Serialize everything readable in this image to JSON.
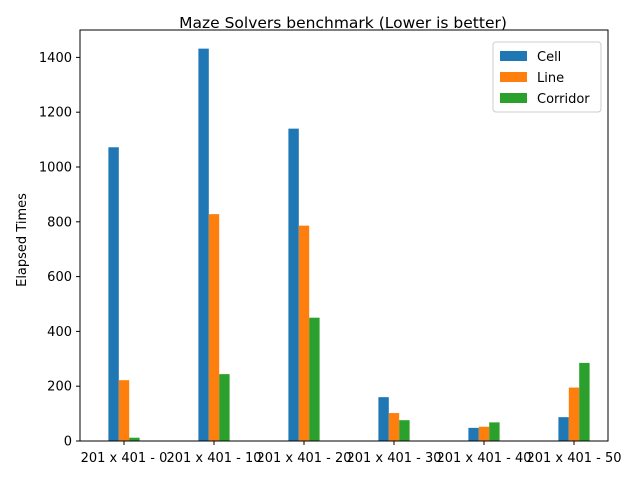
{
  "chart_data": {
    "type": "bar",
    "title": "Maze Solvers benchmark (Lower is better)",
    "xlabel": "",
    "ylabel": "Elapsed Times",
    "categories": [
      "201 x 401 - 0",
      "201 x 401 - 10",
      "201 x 401 - 20",
      "201 x 401 - 30",
      "201 x 401 - 40",
      "201 x 401 - 50"
    ],
    "series": [
      {
        "name": "Cell",
        "color": "#1f77b4",
        "values": [
          1072,
          1432,
          1140,
          160,
          48,
          87
        ]
      },
      {
        "name": "Line",
        "color": "#ff7f0e",
        "values": [
          222,
          828,
          786,
          102,
          52,
          195
        ]
      },
      {
        "name": "Corridor",
        "color": "#2ca02c",
        "values": [
          12,
          244,
          450,
          76,
          68,
          285
        ]
      }
    ],
    "ylim": [
      0,
      1500
    ],
    "yticks": [
      0,
      200,
      400,
      600,
      800,
      1000,
      1200,
      1400
    ],
    "grid": false,
    "legend_position": "top-right"
  }
}
